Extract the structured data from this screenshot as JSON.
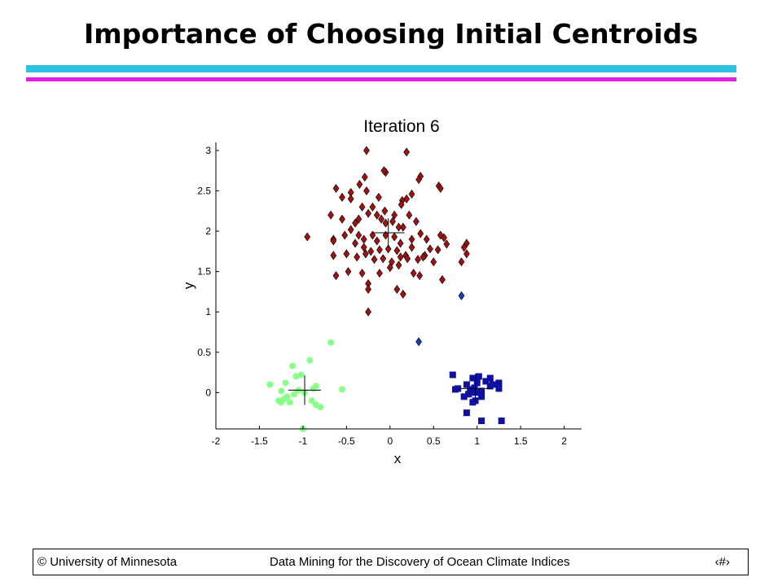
{
  "slide": {
    "title": "Importance of Choosing Initial Centroids",
    "footer_left": "© University of Minnesota",
    "footer_center": "Data Mining for the Discovery of Ocean Climate Indices",
    "footer_right": "‹#›"
  },
  "colors": {
    "rule_cyan": "#2ec0e0",
    "rule_magenta": "#e020e0"
  },
  "chart_data": {
    "type": "scatter",
    "title": "Iteration 6",
    "xlabel": "x",
    "ylabel": "y",
    "xlim": [
      -2.0,
      2.2
    ],
    "ylim": [
      -0.45,
      3.1
    ],
    "xticks": [
      "-2",
      "-1.5",
      "-1",
      "-0.5",
      "0",
      "0.5",
      "1",
      "1.5",
      "2"
    ],
    "xtick_values": [
      -2,
      -1.5,
      -1,
      -0.5,
      0,
      0.5,
      1,
      1.5,
      2
    ],
    "yticks": [
      "0",
      "0.5",
      "1",
      "1.5",
      "2",
      "2.5",
      "3"
    ],
    "ytick_values": [
      0,
      0.5,
      1,
      1.5,
      2,
      2.5,
      3
    ],
    "grid": false,
    "series": [
      {
        "marker": "diamond",
        "color": "#a01010",
        "points": [
          [
            -0.27,
            3.0
          ],
          [
            0.19,
            2.98
          ],
          [
            -0.05,
            2.73
          ],
          [
            -0.07,
            2.75
          ],
          [
            0.35,
            2.68
          ],
          [
            0.33,
            2.64
          ],
          [
            -0.29,
            2.67
          ],
          [
            -0.35,
            2.58
          ],
          [
            -0.62,
            2.53
          ],
          [
            -0.45,
            2.48
          ],
          [
            -0.27,
            2.5
          ],
          [
            -0.13,
            2.42
          ],
          [
            0.14,
            2.38
          ],
          [
            0.25,
            2.46
          ],
          [
            -0.55,
            2.42
          ],
          [
            0.56,
            2.56
          ],
          [
            0.58,
            2.53
          ],
          [
            -0.45,
            2.4
          ],
          [
            -0.2,
            2.3
          ],
          [
            -0.32,
            2.3
          ],
          [
            0.13,
            2.33
          ],
          [
            0.19,
            2.4
          ],
          [
            -0.06,
            2.25
          ],
          [
            0.05,
            2.2
          ],
          [
            0.15,
            2.05
          ],
          [
            -0.55,
            2.15
          ],
          [
            -0.68,
            2.2
          ],
          [
            -0.4,
            2.1
          ],
          [
            -0.36,
            2.15
          ],
          [
            -0.25,
            2.22
          ],
          [
            -0.15,
            2.2
          ],
          [
            -0.1,
            2.15
          ],
          [
            -0.05,
            2.1
          ],
          [
            0.03,
            2.12
          ],
          [
            0.1,
            2.05
          ],
          [
            0.22,
            2.2
          ],
          [
            0.3,
            2.12
          ],
          [
            -0.65,
            1.9
          ],
          [
            -0.52,
            1.95
          ],
          [
            -0.45,
            2.02
          ],
          [
            -0.36,
            1.95
          ],
          [
            -0.3,
            1.9
          ],
          [
            -0.2,
            1.95
          ],
          [
            -0.15,
            1.88
          ],
          [
            -0.05,
            1.95
          ],
          [
            0.05,
            1.93
          ],
          [
            0.12,
            1.85
          ],
          [
            0.25,
            1.9
          ],
          [
            0.35,
            1.97
          ],
          [
            0.42,
            1.9
          ],
          [
            0.58,
            1.95
          ],
          [
            0.62,
            1.92
          ],
          [
            0.65,
            1.84
          ],
          [
            -0.95,
            1.93
          ],
          [
            -0.65,
            1.88
          ],
          [
            -0.4,
            1.85
          ],
          [
            -0.3,
            1.8
          ],
          [
            -0.22,
            1.75
          ],
          [
            -0.12,
            1.77
          ],
          [
            -0.02,
            1.78
          ],
          [
            0.08,
            1.76
          ],
          [
            0.18,
            1.7
          ],
          [
            0.25,
            1.8
          ],
          [
            0.4,
            1.7
          ],
          [
            0.46,
            1.78
          ],
          [
            0.55,
            1.77
          ],
          [
            0.88,
            1.85
          ],
          [
            0.85,
            1.8
          ],
          [
            -0.65,
            1.7
          ],
          [
            -0.5,
            1.72
          ],
          [
            -0.38,
            1.68
          ],
          [
            -0.28,
            1.72
          ],
          [
            -0.18,
            1.65
          ],
          [
            -0.08,
            1.66
          ],
          [
            0.02,
            1.62
          ],
          [
            0.12,
            1.68
          ],
          [
            0.2,
            1.66
          ],
          [
            0.32,
            1.65
          ],
          [
            0.38,
            1.68
          ],
          [
            0.5,
            1.62
          ],
          [
            0.88,
            1.72
          ],
          [
            0.82,
            1.62
          ],
          [
            -0.62,
            1.45
          ],
          [
            -0.48,
            1.5
          ],
          [
            -0.32,
            1.48
          ],
          [
            -0.12,
            1.48
          ],
          [
            0.0,
            1.55
          ],
          [
            0.1,
            1.58
          ],
          [
            0.27,
            1.48
          ],
          [
            0.34,
            1.45
          ],
          [
            0.6,
            1.4
          ],
          [
            -0.25,
            1.35
          ],
          [
            -0.25,
            1.28
          ],
          [
            0.08,
            1.28
          ],
          [
            0.15,
            1.22
          ],
          [
            -0.25,
            1.0
          ]
        ]
      },
      {
        "marker": "diamond",
        "color": "#1040b0",
        "points": [
          [
            0.82,
            1.2
          ],
          [
            0.33,
            0.63
          ]
        ]
      },
      {
        "marker": "circle",
        "color": "#88ff88",
        "points": [
          [
            -0.68,
            0.62
          ],
          [
            -0.92,
            0.4
          ],
          [
            -1.12,
            0.33
          ],
          [
            -1.08,
            0.2
          ],
          [
            -1.02,
            0.22
          ],
          [
            -1.38,
            0.1
          ],
          [
            -1.2,
            0.12
          ],
          [
            -0.85,
            0.08
          ],
          [
            -0.88,
            0.05
          ],
          [
            -0.55,
            0.04
          ],
          [
            -1.25,
            0.02
          ],
          [
            -1.05,
            0.03
          ],
          [
            -0.98,
            0.0
          ],
          [
            -1.1,
            -0.02
          ],
          [
            -1.18,
            -0.05
          ],
          [
            -1.22,
            -0.08
          ],
          [
            -1.28,
            -0.1
          ],
          [
            -1.15,
            -0.12
          ],
          [
            -0.9,
            -0.1
          ],
          [
            -0.85,
            -0.15
          ],
          [
            -1.25,
            -0.12
          ],
          [
            -0.8,
            -0.18
          ],
          [
            -1.0,
            -0.45
          ]
        ]
      },
      {
        "marker": "square",
        "color": "#1010a0",
        "points": [
          [
            0.72,
            0.22
          ],
          [
            0.95,
            0.18
          ],
          [
            1.02,
            0.2
          ],
          [
            1.15,
            0.18
          ],
          [
            0.88,
            0.1
          ],
          [
            1.0,
            0.12
          ],
          [
            1.1,
            0.14
          ],
          [
            1.18,
            0.1
          ],
          [
            0.78,
            0.05
          ],
          [
            0.92,
            0.04
          ],
          [
            0.97,
            0.06
          ],
          [
            1.05,
            0.02
          ],
          [
            1.15,
            0.08
          ],
          [
            1.25,
            0.12
          ],
          [
            1.25,
            0.05
          ],
          [
            0.75,
            0.04
          ],
          [
            0.95,
            0.0
          ],
          [
            1.0,
            0.0
          ],
          [
            0.9,
            -0.02
          ],
          [
            0.85,
            -0.05
          ],
          [
            1.05,
            -0.05
          ],
          [
            0.98,
            -0.1
          ],
          [
            0.88,
            -0.25
          ],
          [
            1.05,
            -0.35
          ],
          [
            1.28,
            -0.35
          ],
          [
            0.95,
            -0.12
          ]
        ]
      }
    ],
    "centroids": [
      [
        -0.02,
        1.98
      ],
      [
        -0.98,
        0.03
      ],
      [
        0.98,
        0.05
      ]
    ]
  }
}
